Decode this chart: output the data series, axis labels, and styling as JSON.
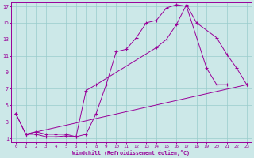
{
  "bg_color": "#cce8e8",
  "grid_color": "#99cccc",
  "line_color": "#990099",
  "xlabel": "Windchill (Refroidissement éolien,°C)",
  "xlim": [
    -0.5,
    23.5
  ],
  "ylim": [
    0.5,
    17.5
  ],
  "xticks": [
    0,
    1,
    2,
    3,
    4,
    5,
    6,
    7,
    8,
    9,
    10,
    11,
    12,
    13,
    14,
    15,
    16,
    17,
    18,
    19,
    20,
    21,
    22,
    23
  ],
  "yticks": [
    1,
    3,
    5,
    7,
    9,
    11,
    13,
    15,
    17
  ],
  "curve1_x": [
    0,
    1,
    2,
    3,
    4,
    5,
    6,
    7,
    8,
    9,
    10,
    11,
    12,
    13,
    14,
    15,
    16,
    17,
    19,
    20,
    21
  ],
  "curve1_y": [
    4,
    1.5,
    1.5,
    1.2,
    1.2,
    1.3,
    1.2,
    1.5,
    4.0,
    7.5,
    11.5,
    11.8,
    13.2,
    15.0,
    15.3,
    16.8,
    17.2,
    17.0,
    9.5,
    7.5,
    7.5
  ],
  "curve2_x": [
    0,
    1,
    2,
    3,
    4,
    5,
    6,
    7,
    8,
    14,
    15,
    16,
    17,
    18,
    20,
    21,
    22,
    23
  ],
  "curve2_y": [
    4,
    1.5,
    1.8,
    1.5,
    1.5,
    1.5,
    1.2,
    6.8,
    7.5,
    12.0,
    13.0,
    14.8,
    17.2,
    15.0,
    13.2,
    11.2,
    9.5,
    7.5
  ],
  "curve3_x": [
    1,
    23
  ],
  "curve3_y": [
    1.5,
    7.5
  ]
}
